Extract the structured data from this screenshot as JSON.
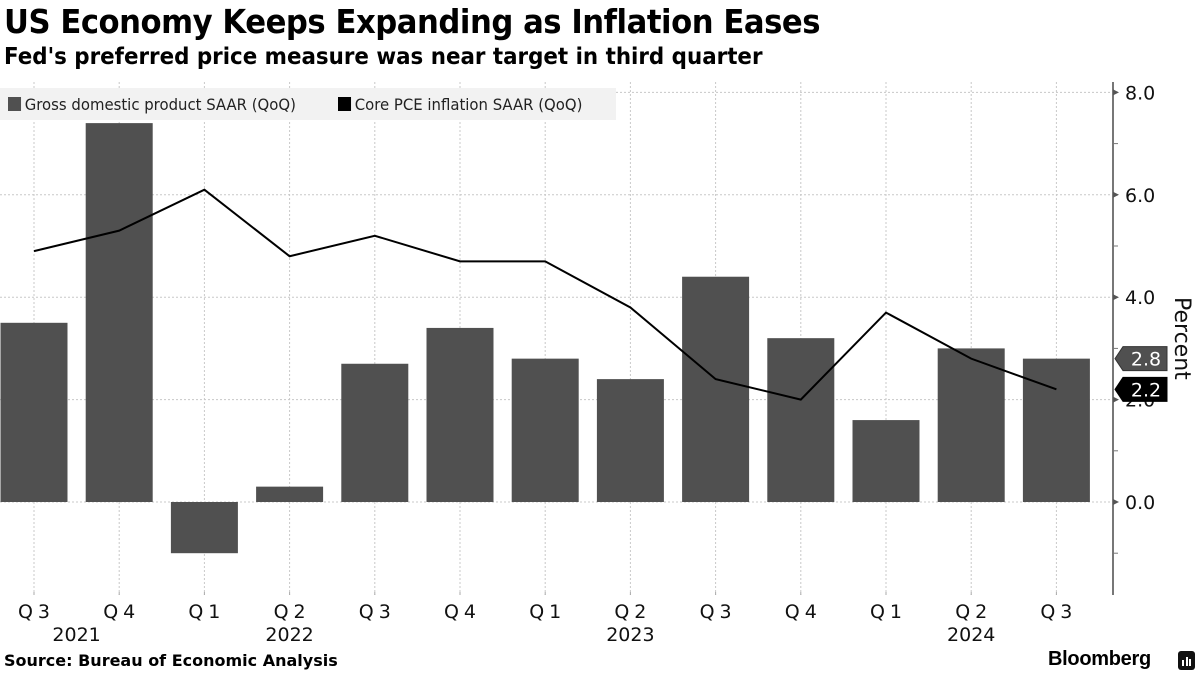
{
  "header": {
    "title": "US Economy Keeps Expanding as Inflation Eases",
    "subtitle": "Fed's preferred price measure was near target in third quarter"
  },
  "footer": {
    "source": "Source: Bureau of Economic Analysis",
    "brand": "Bloomberg",
    "brand_icon": "bloomberg-chart-icon"
  },
  "colors": {
    "bar": "#505050",
    "line": "#000000",
    "legend_bg": "#f2f2f2",
    "grid": "#c8c8c8"
  },
  "chart_data": {
    "type": "bar",
    "title": "US Economy Keeps Expanding as Inflation Eases",
    "subtitle": "Fed's preferred price measure was near target in third quarter",
    "xlabel": "",
    "ylabel": "Percent",
    "ylim": [
      -1.6,
      8.2
    ],
    "yticks": [
      0.0,
      2.0,
      4.0,
      6.0,
      8.0
    ],
    "ytick_labels": [
      "0.0",
      "2.0",
      "4.0",
      "6.0",
      "8.0"
    ],
    "grid": true,
    "legend_position": "top-left",
    "categories": [
      "Q3",
      "Q4",
      "Q1",
      "Q2",
      "Q3",
      "Q4",
      "Q1",
      "Q2",
      "Q3",
      "Q4",
      "Q1",
      "Q2",
      "Q3"
    ],
    "year_labels": [
      {
        "index": 0.5,
        "label": "2021"
      },
      {
        "index": 3,
        "label": "2022"
      },
      {
        "index": 7,
        "label": "2023"
      },
      {
        "index": 11,
        "label": "2024"
      }
    ],
    "series": [
      {
        "name": "Gross domestic product SAAR (QoQ)",
        "type": "bar",
        "values": [
          3.5,
          7.4,
          -1.0,
          0.3,
          2.7,
          3.4,
          2.8,
          2.4,
          4.4,
          3.2,
          1.6,
          3.0,
          2.8
        ],
        "last_value_label": "2.8"
      },
      {
        "name": "Core PCE inflation SAAR (QoQ)",
        "type": "line",
        "values": [
          4.9,
          5.3,
          6.1,
          4.8,
          5.2,
          4.7,
          4.7,
          3.8,
          2.4,
          2.0,
          3.7,
          2.8,
          2.2
        ],
        "last_value_label": "2.2"
      }
    ]
  }
}
